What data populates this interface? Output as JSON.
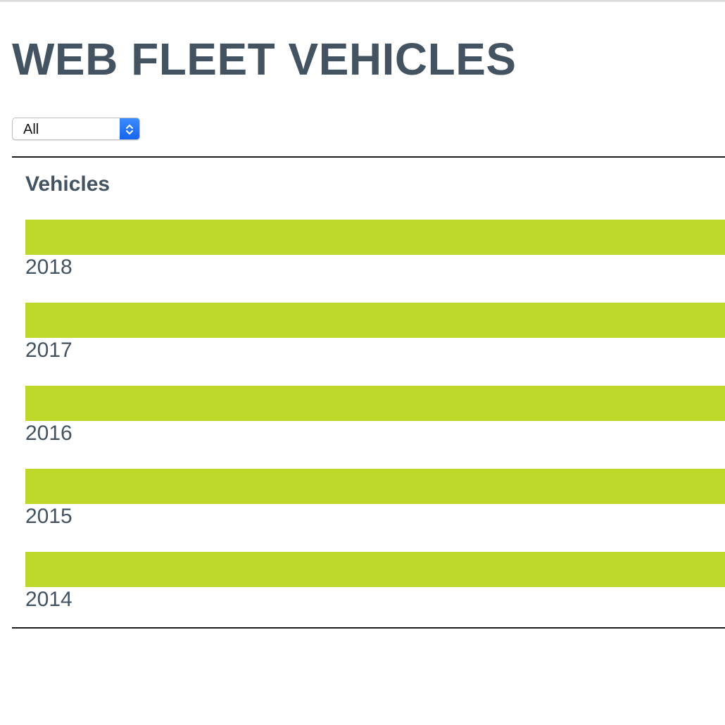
{
  "page": {
    "title": "WEB FLEET VEHICLES"
  },
  "filter": {
    "selected": "All"
  },
  "panel": {
    "heading": "Vehicles",
    "bar_color": "#bfd62b",
    "text_color": "#435361"
  },
  "vehicles": [
    {
      "year": "2018",
      "fill_fraction": 1.0
    },
    {
      "year": "2017",
      "fill_fraction": 1.0
    },
    {
      "year": "2016",
      "fill_fraction": 1.0
    },
    {
      "year": "2015",
      "fill_fraction": 1.0
    },
    {
      "year": "2014",
      "fill_fraction": 1.0
    }
  ]
}
